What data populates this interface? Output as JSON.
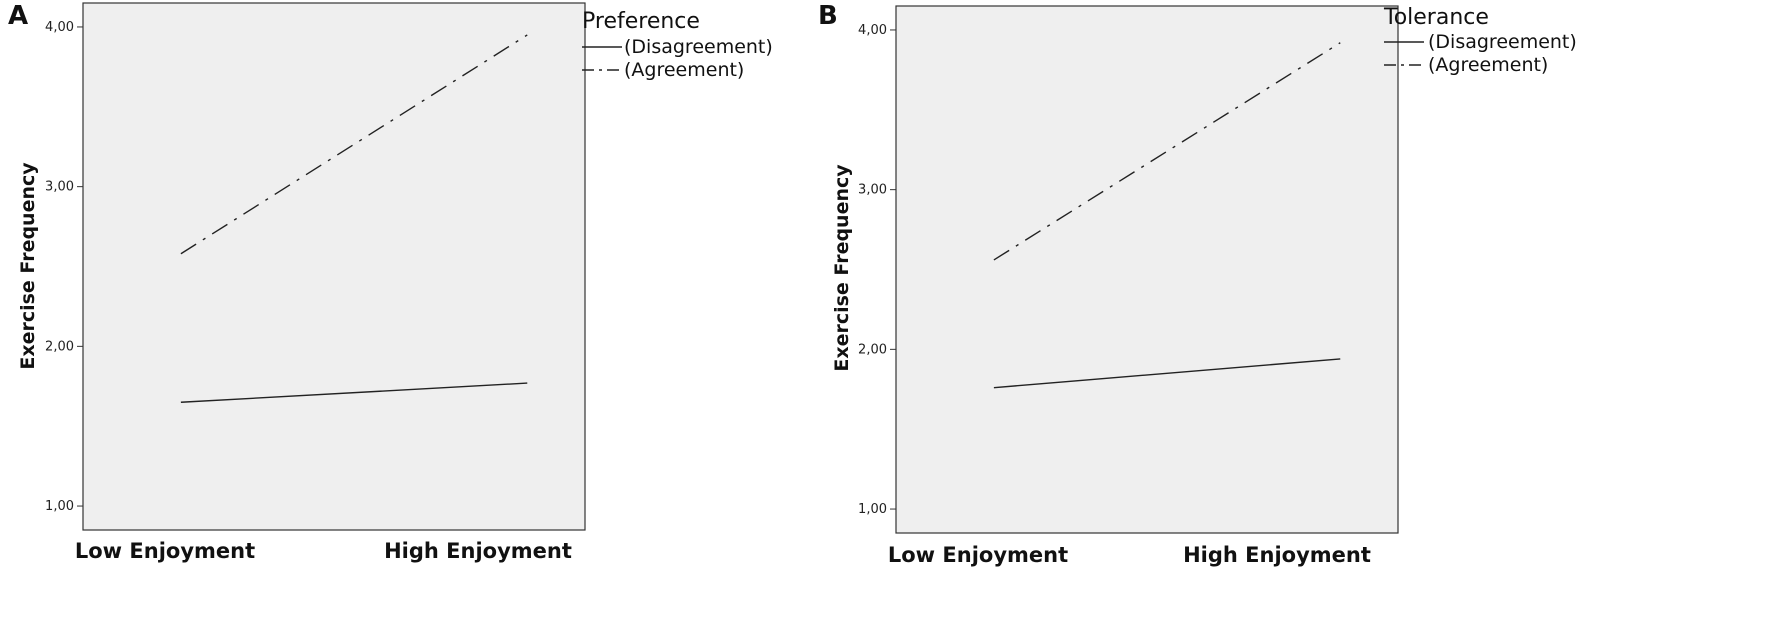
{
  "chart_data": [
    {
      "panel": "A",
      "type": "line",
      "categories": [
        "Low Enjoyment",
        "High Enjoyment"
      ],
      "ylabel": "Exercise Frequency",
      "yticks": [
        "1,00",
        "2,00",
        "3,00",
        "4,00"
      ],
      "ylim": [
        0.85,
        4.15
      ],
      "grid": false,
      "legend_position": "right",
      "legend_title": "Preference",
      "series": [
        {
          "name": "(Disagreement)",
          "style": "solid",
          "values": [
            1.65,
            1.77
          ]
        },
        {
          "name": "(Agreement)",
          "style": "dash-dot",
          "values": [
            2.58,
            3.95
          ]
        }
      ]
    },
    {
      "panel": "B",
      "type": "line",
      "categories": [
        "Low Enjoyment",
        "High Enjoyment"
      ],
      "ylabel": "Exercise Frequency",
      "yticks": [
        "1,00",
        "2,00",
        "3,00",
        "4,00"
      ],
      "ylim": [
        0.85,
        4.15
      ],
      "grid": false,
      "legend_position": "right",
      "legend_title": "Tolerance",
      "series": [
        {
          "name": "(Disagreement)",
          "style": "solid",
          "values": [
            1.76,
            1.94
          ]
        },
        {
          "name": "(Agreement)",
          "style": "dash-dot",
          "values": [
            2.56,
            3.92
          ]
        }
      ]
    }
  ],
  "colors": {
    "plot_background": "#efefef",
    "axis": "#333333",
    "line": "#222222",
    "text": "#111111"
  }
}
